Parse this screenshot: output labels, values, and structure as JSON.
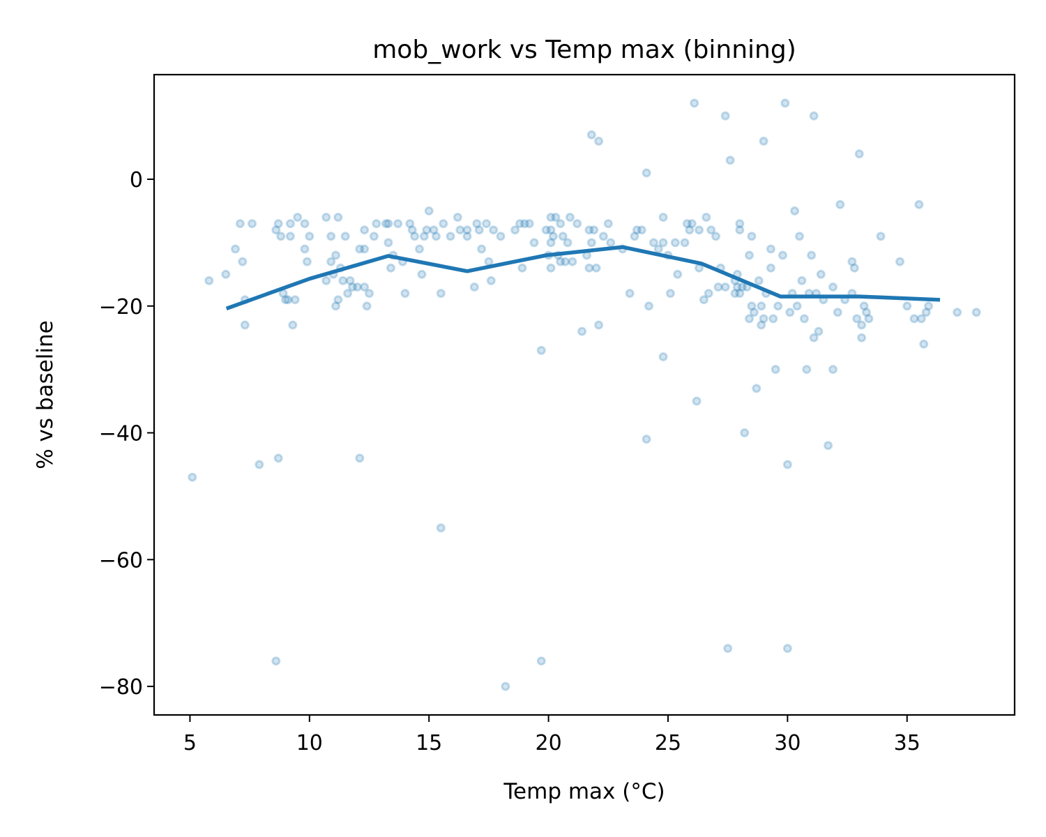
{
  "chart_data": {
    "type": "scatter",
    "title": "mob_work vs Temp max (binning)",
    "xlabel": "Temp max (°C)",
    "ylabel": "% vs baseline",
    "xlim": [
      3.5,
      39.5
    ],
    "ylim": [
      -84.5,
      16.5
    ],
    "x_ticks": [
      5,
      10,
      15,
      20,
      25,
      30,
      35
    ],
    "x_tick_labels": [
      "5",
      "10",
      "15",
      "20",
      "25",
      "30",
      "35"
    ],
    "y_ticks": [
      0,
      -20,
      -40,
      -60,
      -80
    ],
    "y_tick_labels": [
      "0",
      "−20",
      "−40",
      "−60",
      "−80"
    ],
    "grid": false,
    "legend": "none",
    "colors": {
      "series": "#1f77b4",
      "axes": "#000000",
      "background": "#ffffff"
    },
    "point_alpha": 0.2,
    "series": [
      {
        "kind": "scatter",
        "points": [
          [
            5.1,
            -47
          ],
          [
            5.8,
            -16
          ],
          [
            6.5,
            -15
          ],
          [
            6.9,
            -11
          ],
          [
            7.1,
            -7
          ],
          [
            7.3,
            -19
          ],
          [
            7.2,
            -13
          ],
          [
            7.3,
            -23
          ],
          [
            7.6,
            -7
          ],
          [
            7.9,
            -45
          ],
          [
            8.6,
            -8
          ],
          [
            8.7,
            -7
          ],
          [
            8.8,
            -9
          ],
          [
            8.9,
            -18
          ],
          [
            9.0,
            -19
          ],
          [
            9.2,
            -7
          ],
          [
            9.2,
            -9
          ],
          [
            9.1,
            -19
          ],
          [
            9.4,
            -19
          ],
          [
            9.5,
            -6
          ],
          [
            9.8,
            -7
          ],
          [
            9.8,
            -11
          ],
          [
            9.9,
            -13
          ],
          [
            10.0,
            -9
          ],
          [
            8.7,
            -44
          ],
          [
            8.6,
            -76
          ],
          [
            9.3,
            -23
          ],
          [
            10.7,
            -16
          ],
          [
            10.7,
            -6
          ],
          [
            10.9,
            -9
          ],
          [
            10.9,
            -13
          ],
          [
            11.0,
            -15
          ],
          [
            11.1,
            -12
          ],
          [
            11.1,
            -20
          ],
          [
            11.2,
            -19
          ],
          [
            11.2,
            -6
          ],
          [
            11.3,
            -14
          ],
          [
            11.4,
            -16
          ],
          [
            11.5,
            -9
          ],
          [
            11.6,
            -18
          ],
          [
            11.7,
            -16
          ],
          [
            11.8,
            -17
          ],
          [
            12.0,
            -17
          ],
          [
            12.1,
            -11
          ],
          [
            12.1,
            -44
          ],
          [
            12.3,
            -17
          ],
          [
            12.3,
            -11
          ],
          [
            12.3,
            -8
          ],
          [
            12.4,
            -20
          ],
          [
            12.5,
            -18
          ],
          [
            12.8,
            -7
          ],
          [
            12.7,
            -9
          ],
          [
            13.2,
            -7
          ],
          [
            13.3,
            -7
          ],
          [
            13.3,
            -10
          ],
          [
            13.4,
            -14
          ],
          [
            13.5,
            -12
          ],
          [
            13.7,
            -7
          ],
          [
            13.9,
            -13
          ],
          [
            14.0,
            -18
          ],
          [
            14.2,
            -7
          ],
          [
            14.3,
            -8
          ],
          [
            14.4,
            -9
          ],
          [
            14.6,
            -11
          ],
          [
            14.7,
            -15
          ],
          [
            14.8,
            -9
          ],
          [
            14.9,
            -8
          ],
          [
            15.0,
            -5
          ],
          [
            15.2,
            -8
          ],
          [
            15.3,
            -9
          ],
          [
            15.5,
            -18
          ],
          [
            15.5,
            -55
          ],
          [
            15.6,
            -7
          ],
          [
            15.9,
            -9
          ],
          [
            16.2,
            -6
          ],
          [
            16.3,
            -8
          ],
          [
            16.6,
            -8
          ],
          [
            16.6,
            -9
          ],
          [
            16.9,
            -17
          ],
          [
            17.0,
            -7
          ],
          [
            17.1,
            -8
          ],
          [
            17.2,
            -11
          ],
          [
            17.4,
            -7
          ],
          [
            17.5,
            -13
          ],
          [
            17.6,
            -16
          ],
          [
            17.7,
            -8
          ],
          [
            18.0,
            -9
          ],
          [
            18.2,
            -80
          ],
          [
            18.6,
            -8
          ],
          [
            18.8,
            -7
          ],
          [
            18.9,
            -14
          ],
          [
            19.0,
            -7
          ],
          [
            19.2,
            -7
          ],
          [
            19.4,
            -10
          ],
          [
            19.7,
            -27
          ],
          [
            19.7,
            -76
          ],
          [
            19.9,
            -8
          ],
          [
            20.0,
            -12
          ],
          [
            20.1,
            -6
          ],
          [
            20.1,
            -8
          ],
          [
            20.1,
            -10
          ],
          [
            20.1,
            -14
          ],
          [
            20.2,
            -9
          ],
          [
            20.3,
            -6
          ],
          [
            20.4,
            -12
          ],
          [
            20.5,
            -7
          ],
          [
            20.5,
            -13
          ],
          [
            20.6,
            -9
          ],
          [
            20.7,
            -13
          ],
          [
            20.8,
            -10
          ],
          [
            20.9,
            -6
          ],
          [
            21.0,
            -13
          ],
          [
            21.2,
            -7
          ],
          [
            21.4,
            -24
          ],
          [
            21.6,
            -12
          ],
          [
            21.7,
            -8
          ],
          [
            21.7,
            -14
          ],
          [
            21.8,
            -10
          ],
          [
            21.8,
            7
          ],
          [
            21.9,
            -8
          ],
          [
            22.0,
            -14
          ],
          [
            22.1,
            -23
          ],
          [
            22.1,
            6
          ],
          [
            22.3,
            -9
          ],
          [
            22.5,
            -7
          ],
          [
            22.6,
            -10
          ],
          [
            23.1,
            -11
          ],
          [
            23.4,
            -18
          ],
          [
            23.6,
            -9
          ],
          [
            23.7,
            -8
          ],
          [
            23.9,
            -8
          ],
          [
            24.1,
            1
          ],
          [
            24.2,
            -20
          ],
          [
            24.1,
            -41
          ],
          [
            24.4,
            -10
          ],
          [
            24.6,
            -11
          ],
          [
            24.8,
            -10
          ],
          [
            24.8,
            -28
          ],
          [
            24.8,
            -6
          ],
          [
            25.0,
            -12
          ],
          [
            25.1,
            -18
          ],
          [
            25.3,
            -10
          ],
          [
            25.4,
            -15
          ],
          [
            25.7,
            -10
          ],
          [
            25.8,
            -7
          ],
          [
            25.9,
            -8
          ],
          [
            26.0,
            -7
          ],
          [
            26.1,
            12
          ],
          [
            26.2,
            -35
          ],
          [
            26.3,
            -14
          ],
          [
            26.3,
            -8
          ],
          [
            26.5,
            -19
          ],
          [
            26.6,
            -6
          ],
          [
            26.7,
            -18
          ],
          [
            26.8,
            -8
          ],
          [
            27.0,
            -9
          ],
          [
            27.1,
            -17
          ],
          [
            27.2,
            -14
          ],
          [
            27.4,
            -17
          ],
          [
            27.4,
            10
          ],
          [
            27.5,
            -74
          ],
          [
            27.6,
            3
          ],
          [
            27.8,
            -18
          ],
          [
            27.8,
            -16
          ],
          [
            27.9,
            -15
          ],
          [
            27.9,
            -17
          ],
          [
            28.0,
            -7
          ],
          [
            28.0,
            -8
          ],
          [
            28.0,
            -18
          ],
          [
            28.1,
            -17
          ],
          [
            28.2,
            -40
          ],
          [
            28.3,
            -17
          ],
          [
            28.4,
            -12
          ],
          [
            28.4,
            -22
          ],
          [
            28.5,
            -9
          ],
          [
            28.5,
            -20
          ],
          [
            28.6,
            -21
          ],
          [
            28.7,
            -33
          ],
          [
            28.8,
            -16
          ],
          [
            28.9,
            -20
          ],
          [
            28.9,
            -23
          ],
          [
            29.0,
            6
          ],
          [
            29.0,
            -22
          ],
          [
            29.1,
            -18
          ],
          [
            29.3,
            -11
          ],
          [
            29.3,
            -14
          ],
          [
            29.4,
            -22
          ],
          [
            29.5,
            -30
          ],
          [
            29.6,
            -20
          ],
          [
            29.8,
            -12
          ],
          [
            29.9,
            12
          ],
          [
            30.0,
            -45
          ],
          [
            30.0,
            -74
          ],
          [
            30.1,
            -21
          ],
          [
            30.2,
            -18
          ],
          [
            30.3,
            -5
          ],
          [
            30.4,
            -20
          ],
          [
            30.5,
            -9
          ],
          [
            30.6,
            -16
          ],
          [
            30.7,
            -22
          ],
          [
            30.8,
            -30
          ],
          [
            30.9,
            -18
          ],
          [
            31.0,
            -12
          ],
          [
            31.1,
            10
          ],
          [
            31.1,
            -25
          ],
          [
            31.2,
            -18
          ],
          [
            31.3,
            -24
          ],
          [
            31.4,
            -15
          ],
          [
            31.5,
            -19
          ],
          [
            31.7,
            -42
          ],
          [
            31.9,
            -17
          ],
          [
            31.9,
            -30
          ],
          [
            32.1,
            -21
          ],
          [
            32.2,
            -4
          ],
          [
            32.4,
            -19
          ],
          [
            32.7,
            -13
          ],
          [
            32.7,
            -18
          ],
          [
            32.8,
            -14
          ],
          [
            32.9,
            -22
          ],
          [
            33.0,
            4
          ],
          [
            33.1,
            -23
          ],
          [
            33.1,
            -25
          ],
          [
            33.2,
            -20
          ],
          [
            33.3,
            -21
          ],
          [
            33.4,
            -22
          ],
          [
            33.9,
            -9
          ],
          [
            34.7,
            -13
          ],
          [
            35.0,
            -20
          ],
          [
            35.3,
            -22
          ],
          [
            35.5,
            -4
          ],
          [
            35.6,
            -22
          ],
          [
            35.7,
            -26
          ],
          [
            35.8,
            -21
          ],
          [
            35.9,
            -20
          ],
          [
            37.1,
            -21
          ],
          [
            37.9,
            -21
          ]
        ]
      },
      {
        "kind": "line",
        "x": [
          6.6,
          10.0,
          13.3,
          16.6,
          19.9,
          23.1,
          26.4,
          29.7,
          33.0,
          36.3
        ],
        "y": [
          -20.3,
          -15.7,
          -12.1,
          -14.5,
          -12.0,
          -10.7,
          -13.3,
          -18.5,
          -18.5,
          -19.0
        ]
      }
    ]
  }
}
